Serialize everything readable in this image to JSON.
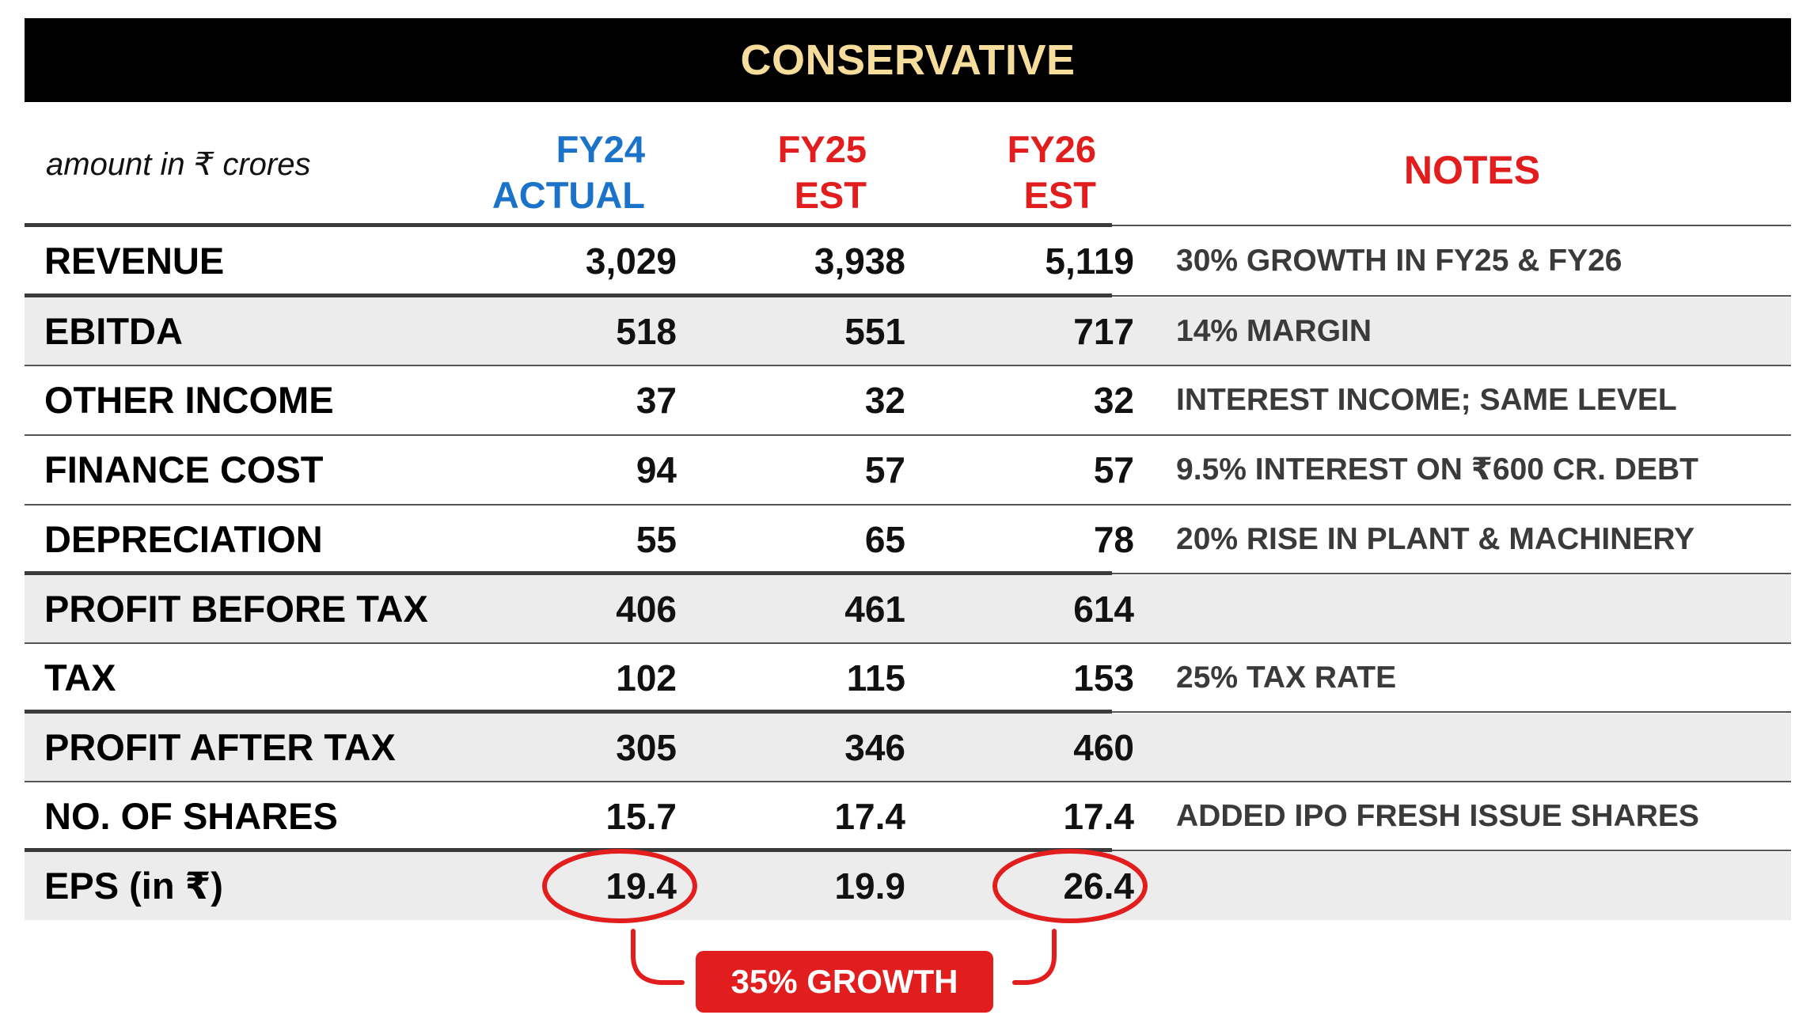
{
  "title": "CONSERVATIVE",
  "unit_label": "amount in ₹ crores",
  "columns": [
    {
      "line1": "FY24",
      "line2": "ACTUAL",
      "color": "#1a73c8"
    },
    {
      "line1": "FY25",
      "line2": "EST",
      "color": "#e11d1d"
    },
    {
      "line1": "FY26",
      "line2": "EST",
      "color": "#e11d1d"
    }
  ],
  "notes_header": "NOTES",
  "rows": [
    {
      "label": "REVENUE",
      "values": [
        "3,029",
        "3,938",
        "5,119"
      ],
      "note": "30% GROWTH IN FY25 & FY26"
    },
    {
      "label": "EBITDA",
      "values": [
        "518",
        "551",
        "717"
      ],
      "note": "14% MARGIN"
    },
    {
      "label": "OTHER INCOME",
      "values": [
        "37",
        "32",
        "32"
      ],
      "note": "INTEREST INCOME; SAME LEVEL"
    },
    {
      "label": "FINANCE COST",
      "values": [
        "94",
        "57",
        "57"
      ],
      "note": "9.5% INTEREST ON ₹600 CR. DEBT"
    },
    {
      "label": "DEPRECIATION",
      "values": [
        "55",
        "65",
        "78"
      ],
      "note": "20% RISE IN PLANT & MACHINERY"
    },
    {
      "label": "PROFIT BEFORE TAX",
      "values": [
        "406",
        "461",
        "614"
      ],
      "note": ""
    },
    {
      "label": "TAX",
      "values": [
        "102",
        "115",
        "153"
      ],
      "note": "25% TAX RATE"
    },
    {
      "label": "PROFIT AFTER TAX",
      "values": [
        "305",
        "346",
        "460"
      ],
      "note": ""
    },
    {
      "label": "NO. OF SHARES",
      "values": [
        "15.7",
        "17.4",
        "17.4"
      ],
      "note": "ADDED IPO FRESH ISSUE SHARES"
    },
    {
      "label": "EPS (in ₹)",
      "values": [
        "19.4",
        "19.9",
        "26.4"
      ],
      "note": ""
    }
  ],
  "growth_callout": "35% GROWTH",
  "colors": {
    "title_bg": "#000000",
    "title_text": "#f7dd9b",
    "accent_red": "#e11d1d",
    "accent_blue": "#1a73c8",
    "row_gray": "#ececec"
  }
}
